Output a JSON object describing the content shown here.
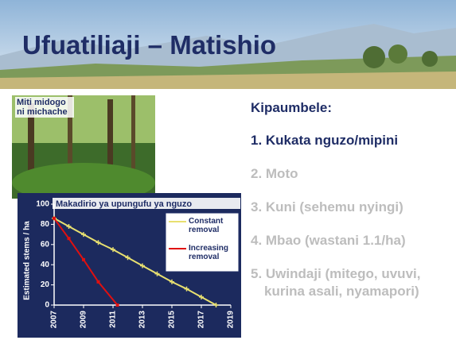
{
  "title": "Ufuatiliaji – Matishio",
  "photo_caption": "Miti midogo ni michache",
  "list": {
    "heading": "Kipaumbele:",
    "items": [
      "1. Kukata nguzo/mipini",
      "2. Moto",
      "3. Kuni (sehemu nyingi)",
      "4. Mbao (wastani 1.1/ha)",
      "5. Uwindaji (mitego, uvuvi, kurina asali, nyamapori)"
    ]
  },
  "chart_data": {
    "type": "line",
    "title": "Makadirio ya upungufu ya nguzo",
    "y_label": "Estimated stems / ha",
    "xlim": [
      2007,
      2019
    ],
    "ylim": [
      0,
      100
    ],
    "xticks": [
      2007,
      2009,
      2011,
      2013,
      2015,
      2017,
      2019
    ],
    "yticks": [
      0,
      20,
      40,
      60,
      80,
      100
    ],
    "legend": "upper right",
    "series": [
      {
        "name": "Constant removal",
        "color": "#e8e070",
        "x": [
          2007,
          2008,
          2009,
          2010,
          2011,
          2012,
          2013,
          2014,
          2015,
          2016,
          2017,
          2018
        ],
        "values": [
          86,
          78,
          70,
          62,
          55,
          47,
          39,
          31,
          23,
          16,
          8,
          0
        ]
      },
      {
        "name": "Increasing removal",
        "color": "#e01010",
        "x": [
          2007,
          2008,
          2009,
          2010,
          2011.3
        ],
        "values": [
          86,
          66,
          45,
          23,
          0
        ]
      }
    ]
  }
}
